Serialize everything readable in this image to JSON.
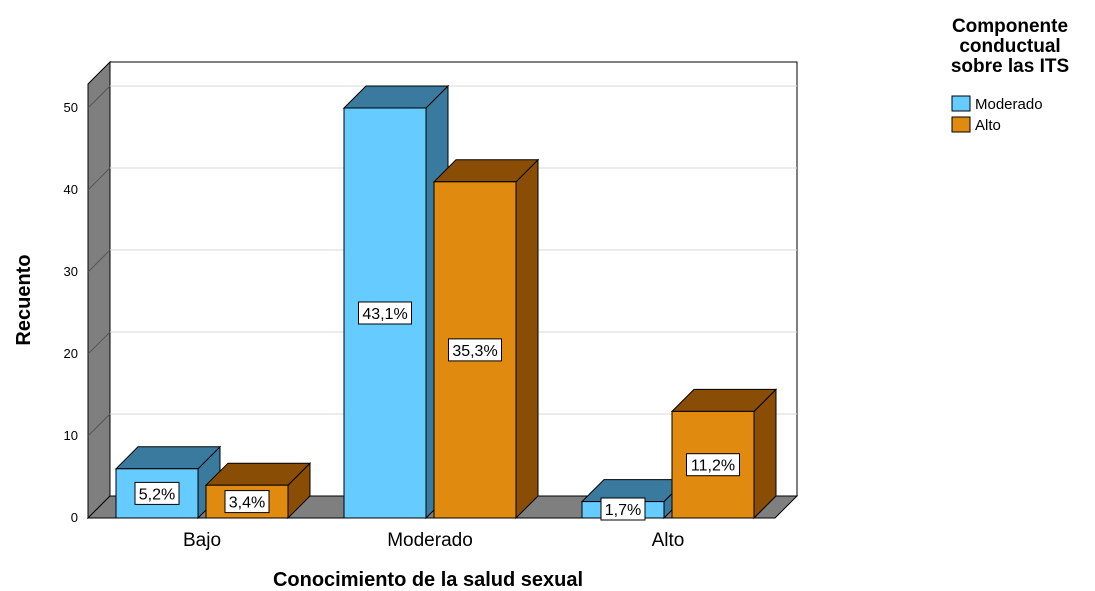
{
  "chart_data": {
    "type": "bar",
    "title": "",
    "xlabel": "Conocimiento de la salud sexual",
    "ylabel": "Recuento",
    "ylim": [
      0,
      50
    ],
    "yticks": [
      "0",
      "10",
      "20",
      "30",
      "40",
      "50"
    ],
    "categories": [
      "Bajo",
      "Moderado",
      "Alto"
    ],
    "legend_title": [
      "Componente",
      "conductual",
      "sobre las ITS"
    ],
    "legend_position": "top-right",
    "grid": true,
    "series": [
      {
        "name": "Moderado",
        "color": "#66ccff",
        "side_color": "#3a7a9e",
        "values": [
          6,
          50,
          2
        ],
        "labels": [
          "5,2%",
          "43,1%",
          "1,7%"
        ]
      },
      {
        "name": "Alto",
        "color": "#e08a0f",
        "side_color": "#8a4d05",
        "values": [
          4,
          41,
          13
        ],
        "labels": [
          "3,4%",
          "35,3%",
          "11,2%"
        ]
      }
    ]
  }
}
